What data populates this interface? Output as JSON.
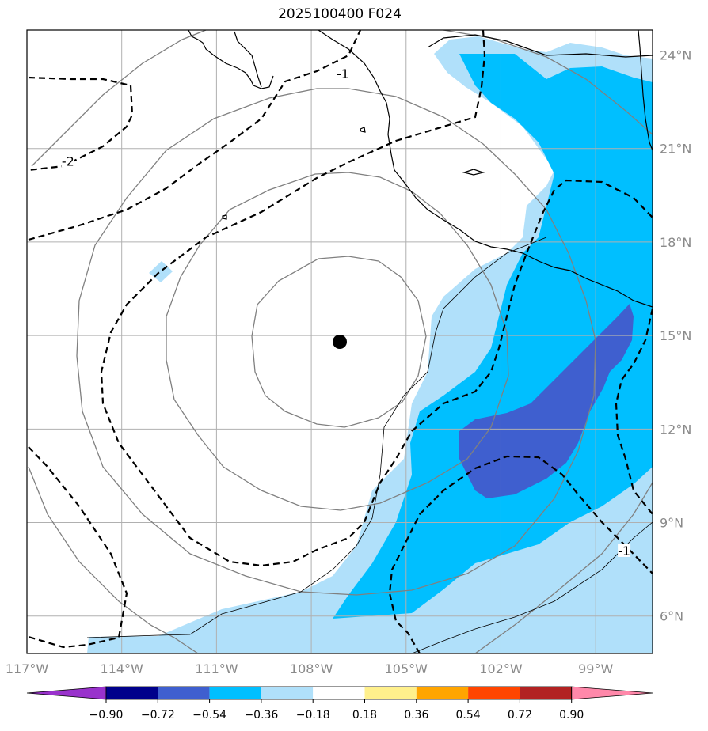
{
  "title": "2025100400 F024",
  "map": {
    "lon_range": [
      -117,
      -97.2
    ],
    "lat_range": [
      4.8,
      24.8
    ],
    "lon_ticks": [
      {
        "value": -117,
        "label": "117°W"
      },
      {
        "value": -114,
        "label": "114°W"
      },
      {
        "value": -111,
        "label": "111°W"
      },
      {
        "value": -108,
        "label": "108°W"
      },
      {
        "value": -105,
        "label": "105°W"
      },
      {
        "value": -102,
        "label": "102°W"
      },
      {
        "value": -99,
        "label": "99°W"
      }
    ],
    "lat_ticks": [
      {
        "value": 6,
        "label": "6°N"
      },
      {
        "value": 9,
        "label": "9°N"
      },
      {
        "value": 12,
        "label": "12°N"
      },
      {
        "value": 15,
        "label": "15°N"
      },
      {
        "value": 18,
        "label": "18°N"
      },
      {
        "value": 21,
        "label": "21°N"
      },
      {
        "value": 24,
        "label": "24°N"
      }
    ],
    "gridlines": true,
    "storm_center": {
      "lon": -107.1,
      "lat": 14.8
    },
    "contour_labels": [
      {
        "text": "-2",
        "lon": -115.7,
        "lat": 20.5
      },
      {
        "text": "-1",
        "lon": -107.0,
        "lat": 23.3
      },
      {
        "text": "-1",
        "lon": -98.1,
        "lat": 8.0
      }
    ],
    "colors": {
      "light_blue": "#b0e0fa",
      "blue": "#00bfff",
      "dark_blue": "#3f5fcf",
      "coast": "#000000",
      "rings": "#808080",
      "grid": "#b0b0b0"
    }
  },
  "colorbar": {
    "colors": [
      "#9932cc",
      "#00008b",
      "#3f5fcf",
      "#00bfff",
      "#b0e0fa",
      "#ffffff",
      "#fff08c",
      "#ffa500",
      "#ff4500",
      "#b22222",
      "#ff88aa"
    ],
    "labels": [
      "−0.90",
      "−0.72",
      "−0.54",
      "−0.36",
      "−0.18",
      "0.18",
      "0.36",
      "0.54",
      "0.72",
      "0.90"
    ]
  }
}
